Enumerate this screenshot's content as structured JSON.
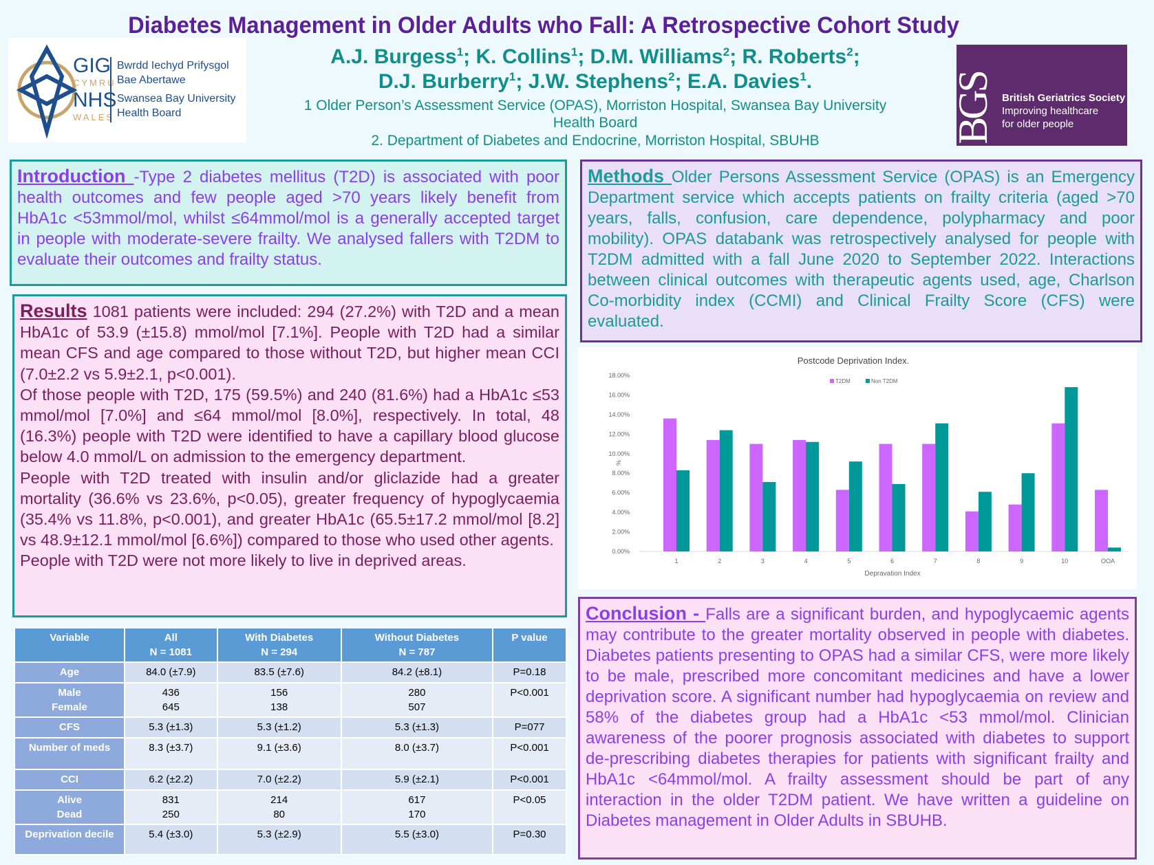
{
  "header": {
    "title": "Diabetes Management in Older Adults who Fall: A Retrospective Cohort Study",
    "authors_line1": [
      {
        "name": "A.J. Burgess",
        "sup": "1"
      },
      {
        "name": "K. Collins",
        "sup": "1"
      },
      {
        "name": "D.M. Williams",
        "sup": "2"
      },
      {
        "name": "R. Roberts",
        "sup": "2"
      }
    ],
    "authors_line2": [
      {
        "name": "D.J. Burberry",
        "sup": "1"
      },
      {
        "name": "J.W. Stephens",
        "sup": "2"
      },
      {
        "name": "E.A. Davies",
        "sup": "1"
      }
    ],
    "affiliation1a": "1 Older Person’s Assessment Service (OPAS), Morriston Hospital, Swansea Bay University",
    "affiliation1b": "Health Board",
    "affiliation2": "2. Department of Diabetes and Endocrine, Morriston Hospital, SBUHB"
  },
  "logos": {
    "nhs": {
      "gig": "GIG",
      "cymru": "CYMRU",
      "nhs": "NHS",
      "wales": "WALES",
      "welsh1": "Bwrdd Iechyd Prifysgol",
      "welsh2": "Bae Abertawe",
      "en1": "Swansea Bay University",
      "en2": "Health Board"
    },
    "bgs": {
      "mark": "BGS",
      "name": "British Geriatrics Society",
      "tag1": "Improving healthcare",
      "tag2": "for older people"
    }
  },
  "introduction": {
    "heading": "Introduction ",
    "text": "-Type 2 diabetes mellitus (T2D) is associated with poor health outcomes and few people aged >70 years likely benefit from HbA1c <53mmol/mol, whilst ≤64mmol/mol is a generally accepted target in people with moderate-severe frailty. We analysed fallers with T2DM to evaluate their outcomes and frailty status."
  },
  "results": {
    "heading": "Results",
    "p1": " 1081 patients were included: 294 (27.2%) with T2D and a mean HbA1c of 53.9 (±15.8) mmol/mol [7.1%]. People with T2D had a similar mean CFS and age compared to those without T2D, but higher mean CCI (7.0±2.2 vs 5.9±2.1, p<0.001).",
    "p2": "Of those people with T2D, 175 (59.5%) and 240 (81.6%) had a HbA1c ≤53 mmol/mol [7.0%] and ≤64 mmol/mol [8.0%], respectively. In total, 48 (16.3%) people with T2D were identified to have a capillary blood glucose below 4.0 mmol/L on admission to the emergency department.",
    "p3": "People with T2D treated with insulin and/or gliclazide had a greater mortality (36.6% vs 23.6%, p<0.05), greater frequency of hypoglycaemia (35.4% vs 11.8%, p<0.001), and greater HbA1c (65.5±17.2 mmol/mol [8.2] vs 48.9±12.1 mmol/mol [6.6%]) compared to those who used other agents.",
    "p4": "People with T2D were not more likely to live in deprived areas."
  },
  "table": {
    "headers": [
      [
        "Variable",
        ""
      ],
      [
        "All",
        "N = 1081"
      ],
      [
        "With Diabetes",
        "N = 294"
      ],
      [
        "Without Diabetes",
        "N = 787"
      ],
      [
        "P value",
        ""
      ]
    ],
    "rows": [
      {
        "var": [
          "Age"
        ],
        "all": [
          "84.0 (±7.9)"
        ],
        "with": [
          "83.5 (±7.6)"
        ],
        "without": [
          "84.2 (±8.1)"
        ],
        "p": "P=0.18"
      },
      {
        "var": [
          "Male",
          "Female"
        ],
        "all": [
          "436",
          "645"
        ],
        "with": [
          "156",
          "138"
        ],
        "without": [
          "280",
          "507"
        ],
        "p": "P<0.001"
      },
      {
        "var": [
          "CFS"
        ],
        "all": [
          "5.3 (±1.3)"
        ],
        "with": [
          "5.3 (±1.2)"
        ],
        "without": [
          "5.3 (±1.3)"
        ],
        "p": "P=077"
      },
      {
        "var": [
          "Number of meds"
        ],
        "all": [
          "8.3 (±3.7)"
        ],
        "with": [
          "9.1 (±3.6)"
        ],
        "without": [
          "8.0 (±3.7)"
        ],
        "p": "P<0.001"
      },
      {
        "var": [
          "CCI"
        ],
        "all": [
          "6.2 (±2.2)"
        ],
        "with": [
          "7.0 (±2.2)"
        ],
        "without": [
          "5.9 (±2.1)"
        ],
        "p": "P<0.001"
      },
      {
        "var": [
          "Alive",
          "Dead"
        ],
        "all": [
          "831",
          "250"
        ],
        "with": [
          "214",
          "80"
        ],
        "without": [
          "617",
          "170"
        ],
        "p": "P<0.05"
      },
      {
        "var": [
          "Deprivation decile"
        ],
        "all": [
          "5.4 (±3.0)"
        ],
        "with": [
          "5.3 (±2.9)"
        ],
        "without": [
          "5.5 (±3.0)"
        ],
        "p": "P=0.30"
      }
    ]
  },
  "methods": {
    "heading": "Methods ",
    "text": " Older Persons Assessment Service (OPAS) is an Emergency Department service which accepts patients on frailty criteria (aged >70 years, falls, confusion, care dependence, polypharmacy and poor mobility).  OPAS databank was retrospectively analysed for people with T2DM admitted with a fall June 2020 to September 2022. Interactions between clinical outcomes with therapeutic agents used, age, Charlson Co-morbidity index (CCMI) and Clinical Frailty Score (CFS) were evaluated."
  },
  "conclusion": {
    "heading": "Conclusion - ",
    "text": "Falls are a significant burden, and hypoglycaemic agents may contribute to the greater mortality observed in people with diabetes. Diabetes patients presenting to OPAS had a similar CFS, were more likely to be male, prescribed more concomitant medicines and have a lower deprivation score. A significant number had hypoglycaemia on review and 58% of the diabetes group had a HbA1c <53 mmol/mol. Clinician awareness of the poorer prognosis associated with diabetes to support de-prescribing diabetes therapies for patients with significant frailty and HbA1c <64mmol/mol. A frailty assessment should be part of any interaction in the older T2DM patient. We have written a guideline on Diabetes management in Older Adults in SBUHB."
  },
  "chart_data": {
    "type": "bar",
    "title": "Postcode Deprivation Index.",
    "xlabel": "Depravation Index",
    "ylabel": "%",
    "categories": [
      "1",
      "2",
      "3",
      "4",
      "5",
      "6",
      "7",
      "8",
      "9",
      "10",
      "OOA"
    ],
    "series": [
      {
        "name": "T2DM",
        "color": "#CC66FF",
        "values": [
          13.6,
          11.4,
          11.0,
          11.4,
          6.3,
          11.0,
          11.0,
          4.1,
          4.8,
          13.1,
          6.3
        ]
      },
      {
        "name": "Non T2DM",
        "color": "#009999",
        "values": [
          8.3,
          12.4,
          7.1,
          11.2,
          9.2,
          6.9,
          13.1,
          6.1,
          8.0,
          16.8,
          0.4
        ]
      }
    ],
    "ylim": [
      0,
      18
    ],
    "yticks": [
      "0.00%",
      "2.00%",
      "4.00%",
      "6.00%",
      "8.00%",
      "10.00%",
      "12.00%",
      "14.00%",
      "16.00%",
      "18.00%"
    ],
    "grid": false,
    "legend": "top-center"
  }
}
